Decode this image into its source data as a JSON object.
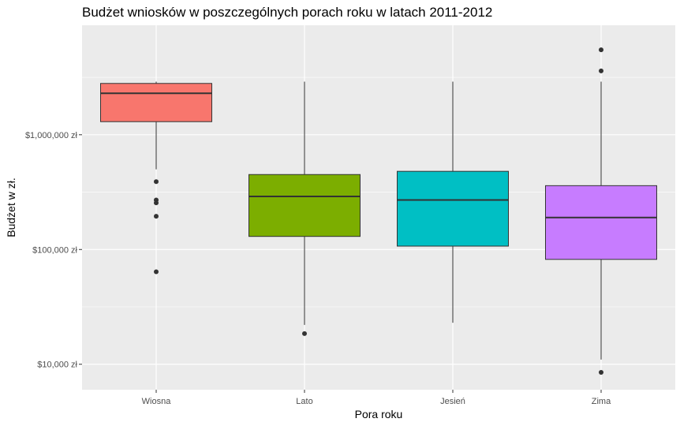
{
  "chart_data": {
    "type": "boxplot",
    "title": "Budżet wniosków w poszczególnych porach roku w latach 2011-2012",
    "xlabel": "Pora roku",
    "ylabel": "Budżet w zł.",
    "y_scale": "log10",
    "ylim": [
      6000,
      9000000
    ],
    "yticks": [
      10000,
      100000,
      1000000
    ],
    "ytick_labels": [
      "$10,000 zł",
      "$100,000 zł",
      "$1,000,000 zł"
    ],
    "grid": true,
    "legend": "none",
    "categories": [
      "Wiosna",
      "Lato",
      "Jesień",
      "Zima"
    ],
    "boxes": [
      {
        "category": "Wiosna",
        "color": "#F8766D",
        "whisker_low": 500000,
        "q1": 1300000,
        "median": 2300000,
        "q3": 2800000,
        "whisker_high": 2900000,
        "outliers": [
          390000,
          270000,
          255000,
          195000,
          64000
        ]
      },
      {
        "category": "Lato",
        "color": "#7CAE00",
        "whisker_low": 22000,
        "q1": 130000,
        "median": 290000,
        "q3": 450000,
        "whisker_high": 2900000,
        "outliers": [
          18500
        ]
      },
      {
        "category": "Jesień",
        "color": "#00BFC4",
        "whisker_low": 23000,
        "q1": 107000,
        "median": 270000,
        "q3": 480000,
        "whisker_high": 2900000,
        "outliers": []
      },
      {
        "category": "Zima",
        "color": "#C77CFF",
        "whisker_low": 11000,
        "q1": 82000,
        "median": 190000,
        "q3": 360000,
        "whisker_high": 2900000,
        "outliers": [
          8500,
          3600000,
          5500000
        ]
      }
    ]
  }
}
